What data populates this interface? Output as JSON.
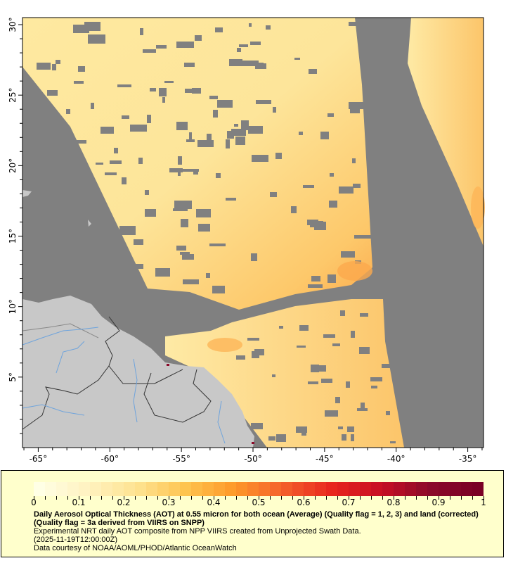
{
  "map": {
    "lon_range": [
      -66.1,
      -33.9
    ],
    "lat_range": [
      0,
      30.5
    ],
    "x_ticks": [
      "-65°",
      "-60°",
      "-55°",
      "-50°",
      "-45°",
      "-40°",
      "-35°"
    ],
    "y_ticks": [
      "5°",
      "10°",
      "15°",
      "20°",
      "25°",
      "30°"
    ],
    "colors": {
      "nodata": "#808080",
      "land": "#c8c8c8",
      "river": "#6fa4dc",
      "border": "#333333"
    }
  },
  "colorbar": {
    "range": [
      0,
      1
    ],
    "tick_labels": [
      "0",
      "0.1",
      "0.2",
      "0.3",
      "0.4",
      "0.5",
      "0.6",
      "0.7",
      "0.8",
      "0.9",
      "1"
    ],
    "stops": [
      "#ffffe5",
      "#fff2c0",
      "#fee391",
      "#fec44f",
      "#fe9929",
      "#f4602b",
      "#e8271e",
      "#c80f23",
      "#8b0a2a",
      "#7a0025"
    ]
  },
  "caption": {
    "title": "Daily Aerosol Optical Thickness (AOT) at 0.55 micron for both ocean (Average) (Quality flag = 1, 2, 3) and land (corrected) (Quality flag = 3a derived from VIIRS on SNPP)",
    "line1": "Experimental NRT daily AOT composite from NPP VIIRS created from Unprojected Swath Data.",
    "line2": "(2025-11-19T12:00:00Z)",
    "line3": "Data courtesy of NOAA/AOML/PHOD/Atlantic OceanWatch"
  }
}
